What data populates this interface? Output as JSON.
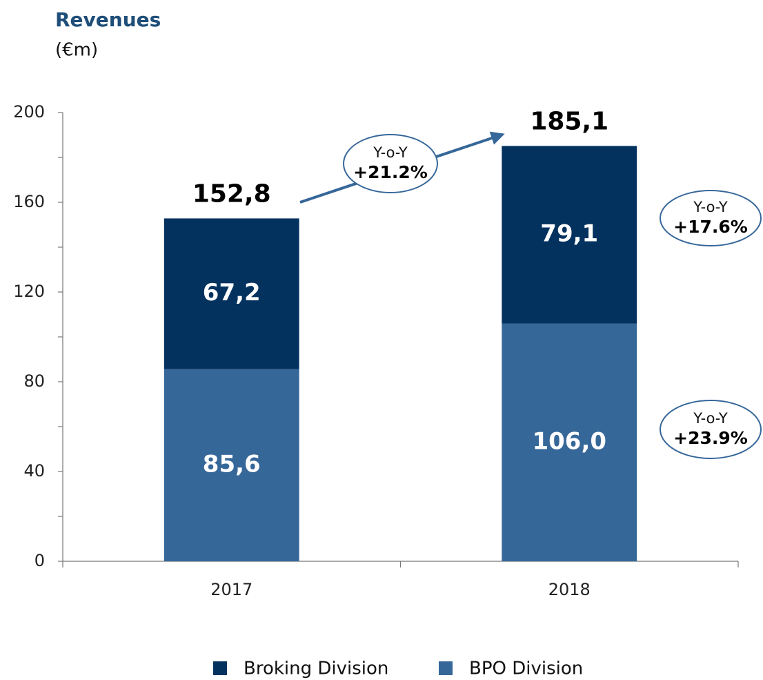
{
  "chart_data": {
    "type": "stacked_bar",
    "title": "Revenues",
    "subtitle": "(€m)",
    "categories": [
      "2017",
      "2018"
    ],
    "series": [
      {
        "name": "Broking Division",
        "color": "#03325f",
        "values": [
          67.2,
          79.1
        ],
        "value_labels": [
          "67,2",
          "79,1"
        ]
      },
      {
        "name": "BPO Division",
        "color": "#366799",
        "values": [
          85.6,
          106.0
        ],
        "value_labels": [
          "85,6",
          "106,0"
        ]
      }
    ],
    "totals": [
      152.8,
      185.1
    ],
    "total_labels": [
      "152,8",
      "185,1"
    ],
    "ylim": [
      0,
      200
    ],
    "yticks": [
      0,
      40,
      80,
      120,
      160,
      200
    ],
    "yminor_ticks": [
      20,
      60,
      100,
      140,
      180
    ],
    "annotations": [
      {
        "label": "Y-o-Y",
        "value": "+21.2%"
      },
      {
        "label": "Y-o-Y",
        "value": "+17.6%"
      },
      {
        "label": "Y-o-Y",
        "value": "+23.9%"
      }
    ],
    "legend": "bottom"
  }
}
